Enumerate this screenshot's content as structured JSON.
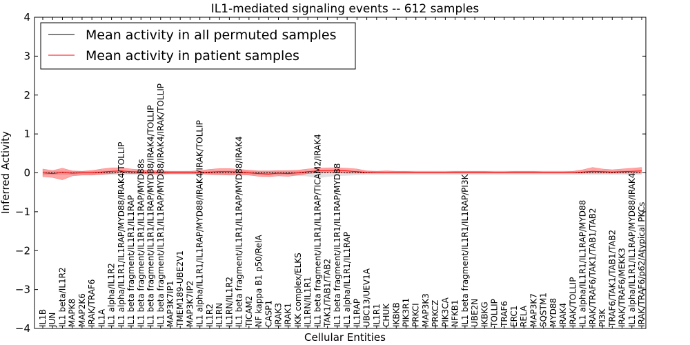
{
  "chart_data": {
    "type": "line",
    "title": "IL1-mediated signaling events -- 612 samples",
    "xlabel": "Cellular Entities",
    "ylabel": "Inferred Activity",
    "ylim": [
      -4,
      4
    ],
    "yticks": [
      {
        "value": 4,
        "label": "4"
      },
      {
        "value": 3,
        "label": "3"
      },
      {
        "value": 2,
        "label": "2"
      },
      {
        "value": 1,
        "label": "1"
      },
      {
        "value": 0,
        "label": "0"
      },
      {
        "value": -1,
        "label": "−1"
      },
      {
        "value": -2,
        "label": "−2"
      },
      {
        "value": -3,
        "label": "−3"
      },
      {
        "value": -4,
        "label": "−4"
      }
    ],
    "legend_position": "top-left",
    "categories": [
      "IL1B",
      "JUN",
      "IL1 beta/IL1R2",
      "MAPK8",
      "MAP2K6",
      "IRAK/TRAF6",
      "IL1A",
      "IL1 alpha/IL1R2",
      "IL1 alpha/IL1R1/IL1RAP/MYD88/IRAK4/TOLLIP",
      "IL1 beta fragment/IL1R1/IL1RAP",
      "IL1 beta fragment/IL1R1/IL1RAP/MYD88s",
      "IL1 beta fragment/IL1R1/IL1RAP/MYD88/IRAK4/TOLLIP",
      "IL1 beta fragment/IL1R1/IL1RAP/MYD88/IRAK4/IRAK/TOLLIP",
      "MAP3K7IP1",
      "TMEM189-UBE2V1",
      "MAP3K7IP2",
      "IL1 alpha/IL1R1/IL1RAP/MYD88/IRAK4/IRAK/TOLLIP",
      "IL1R2",
      "IL1RN",
      "IL1RN/IL1R2",
      "IL1 beta fragment/IL1R1/IL1RAP/MYD88/IRAK4",
      "TICAM2",
      "NF kappa B1 p50/RelA",
      "CASP1",
      "IRAK3",
      "IRAK1",
      "IKK complex/ELKS",
      "IL1RN/IL1R1",
      "IL1 beta fragment/IL1R1/IL1RAP/TICAM2/IRAK4",
      "TAK1/TAB1/TAB2",
      "IL1 beta fragment/IL1R1/IL1RAP/MYD88",
      "IL1 alpha/IL1R1/IL1RAP",
      "IL1RAP",
      "UBC13/UEV1A",
      "IL1R1",
      "CHUK",
      "IKBKB",
      "PIK3R1",
      "PRKCI",
      "MAP3K3",
      "PRKCZ",
      "PIK3CA",
      "NFKB1",
      "IL1 beta fragment/IL1R1/IL1RAP/PI3K",
      "UBE2N",
      "IKBKG",
      "TOLLIP",
      "TRAF6",
      "ERC1",
      "RELA",
      "MAP3K7",
      "SQSTM1",
      "MYD88",
      "IRAK4",
      "IRAK/TOLLIP",
      "IL1 alpha/IL1R1/IL1RAP/MYD88",
      "IRAK/TRAF6/TAK1/TAB1/TAB2",
      "PI3K",
      "TRAF6/TAK1/TAB1/TAB2",
      "IRAK/TRAF6/MEKK3",
      "IL1 alpha/IL1R1/IL1RAP/MYD88/IRAK4",
      "IRAK/TRAF6/p62/Atypical PKCs"
    ],
    "series": [
      {
        "name": "Mean activity in all permuted samples",
        "color": "#000000",
        "values": [
          0,
          0,
          0,
          0,
          0,
          0,
          0,
          0,
          0,
          0,
          0,
          0,
          0,
          0,
          0,
          0,
          0,
          0,
          0,
          0,
          0,
          0,
          0,
          0,
          0,
          0,
          0,
          0,
          0,
          0,
          0,
          0,
          0,
          0,
          0,
          0,
          0,
          0,
          0,
          0,
          0,
          0,
          0,
          0,
          0,
          0,
          0,
          0,
          0,
          0,
          0,
          0,
          0,
          0,
          0,
          0,
          0,
          0,
          0,
          0,
          0,
          0
        ],
        "band_low": [
          -0.05,
          -0.05,
          -0.05,
          -0.05,
          -0.05,
          -0.05,
          -0.05,
          -0.05,
          -0.05,
          -0.05,
          -0.05,
          -0.05,
          -0.05,
          -0.05,
          -0.05,
          -0.05,
          -0.05,
          -0.05,
          -0.05,
          -0.05,
          -0.05,
          -0.05,
          -0.05,
          -0.05,
          -0.05,
          -0.05,
          -0.07,
          -0.09,
          -0.14,
          -0.1,
          -0.08,
          -0.07,
          -0.06,
          -0.05,
          -0.05,
          -0.05,
          -0.05,
          -0.05,
          -0.05,
          -0.05,
          -0.05,
          -0.05,
          -0.05,
          -0.05,
          -0.05,
          -0.05,
          -0.05,
          -0.05,
          -0.05,
          -0.05,
          -0.05,
          -0.05,
          -0.05,
          -0.05,
          -0.05,
          -0.05,
          -0.05,
          -0.05,
          -0.05,
          -0.05,
          -0.05,
          -0.05
        ],
        "band_high": [
          0.05,
          0.05,
          0.05,
          0.05,
          0.05,
          0.05,
          0.05,
          0.05,
          0.05,
          0.05,
          0.05,
          0.05,
          0.05,
          0.05,
          0.05,
          0.05,
          0.05,
          0.05,
          0.05,
          0.05,
          0.05,
          0.05,
          0.05,
          0.05,
          0.05,
          0.05,
          0.05,
          0.05,
          0.05,
          0.05,
          0.05,
          0.05,
          0.05,
          0.05,
          0.05,
          0.05,
          0.05,
          0.05,
          0.05,
          0.05,
          0.05,
          0.05,
          0.05,
          0.05,
          0.05,
          0.05,
          0.05,
          0.05,
          0.05,
          0.05,
          0.05,
          0.05,
          0.05,
          0.05,
          0.05,
          0.05,
          0.05,
          0.05,
          0.05,
          0.05,
          0.05,
          0.05
        ]
      },
      {
        "name": "Mean activity in patient samples",
        "color": "#ff0000",
        "values": [
          0.0,
          -0.02,
          0.01,
          -0.01,
          0.0,
          0.0,
          0.02,
          0.04,
          0.05,
          0.03,
          0.02,
          0.01,
          0.01,
          0.0,
          0.0,
          0.0,
          0.01,
          0.02,
          0.03,
          0.03,
          0.02,
          0.0,
          -0.02,
          -0.03,
          -0.01,
          -0.02,
          0.0,
          0.03,
          0.05,
          0.06,
          0.06,
          0.05,
          0.03,
          0.01,
          0.0,
          0.0,
          0.0,
          0.0,
          0.0,
          0.0,
          0.0,
          0.0,
          0.0,
          0.0,
          0.0,
          0.0,
          0.0,
          0.0,
          0.0,
          0.0,
          0.0,
          0.0,
          0.0,
          0.0,
          0.0,
          0.02,
          0.04,
          0.03,
          0.02,
          0.03,
          0.04,
          0.05
        ],
        "band_low": [
          -0.1,
          -0.12,
          -0.18,
          -0.08,
          -0.06,
          -0.06,
          -0.04,
          -0.02,
          0.0,
          -0.02,
          -0.02,
          -0.03,
          -0.03,
          -0.02,
          -0.02,
          -0.02,
          -0.02,
          -0.04,
          -0.05,
          -0.06,
          -0.05,
          -0.06,
          -0.09,
          -0.1,
          -0.08,
          -0.09,
          -0.06,
          -0.02,
          0.0,
          0.01,
          0.0,
          -0.01,
          -0.01,
          -0.01,
          -0.01,
          -0.01,
          -0.01,
          -0.01,
          -0.01,
          -0.01,
          -0.01,
          -0.01,
          -0.01,
          -0.01,
          -0.01,
          -0.01,
          -0.01,
          -0.01,
          -0.01,
          -0.01,
          -0.01,
          -0.01,
          -0.01,
          -0.01,
          -0.01,
          -0.01,
          -0.01,
          -0.01,
          -0.01,
          -0.01,
          -0.01,
          -0.01
        ],
        "band_high": [
          0.1,
          0.06,
          0.12,
          0.05,
          0.04,
          0.06,
          0.1,
          0.13,
          0.13,
          0.1,
          0.08,
          0.06,
          0.05,
          0.04,
          0.04,
          0.04,
          0.06,
          0.09,
          0.11,
          0.11,
          0.09,
          0.07,
          0.05,
          0.05,
          0.06,
          0.06,
          0.07,
          0.1,
          0.12,
          0.13,
          0.13,
          0.12,
          0.1,
          0.05,
          0.04,
          0.05,
          0.04,
          0.04,
          0.03,
          0.03,
          0.03,
          0.03,
          0.04,
          0.04,
          0.04,
          0.04,
          0.03,
          0.03,
          0.04,
          0.04,
          0.04,
          0.03,
          0.03,
          0.03,
          0.04,
          0.08,
          0.14,
          0.1,
          0.08,
          0.1,
          0.12,
          0.14
        ]
      }
    ]
  }
}
